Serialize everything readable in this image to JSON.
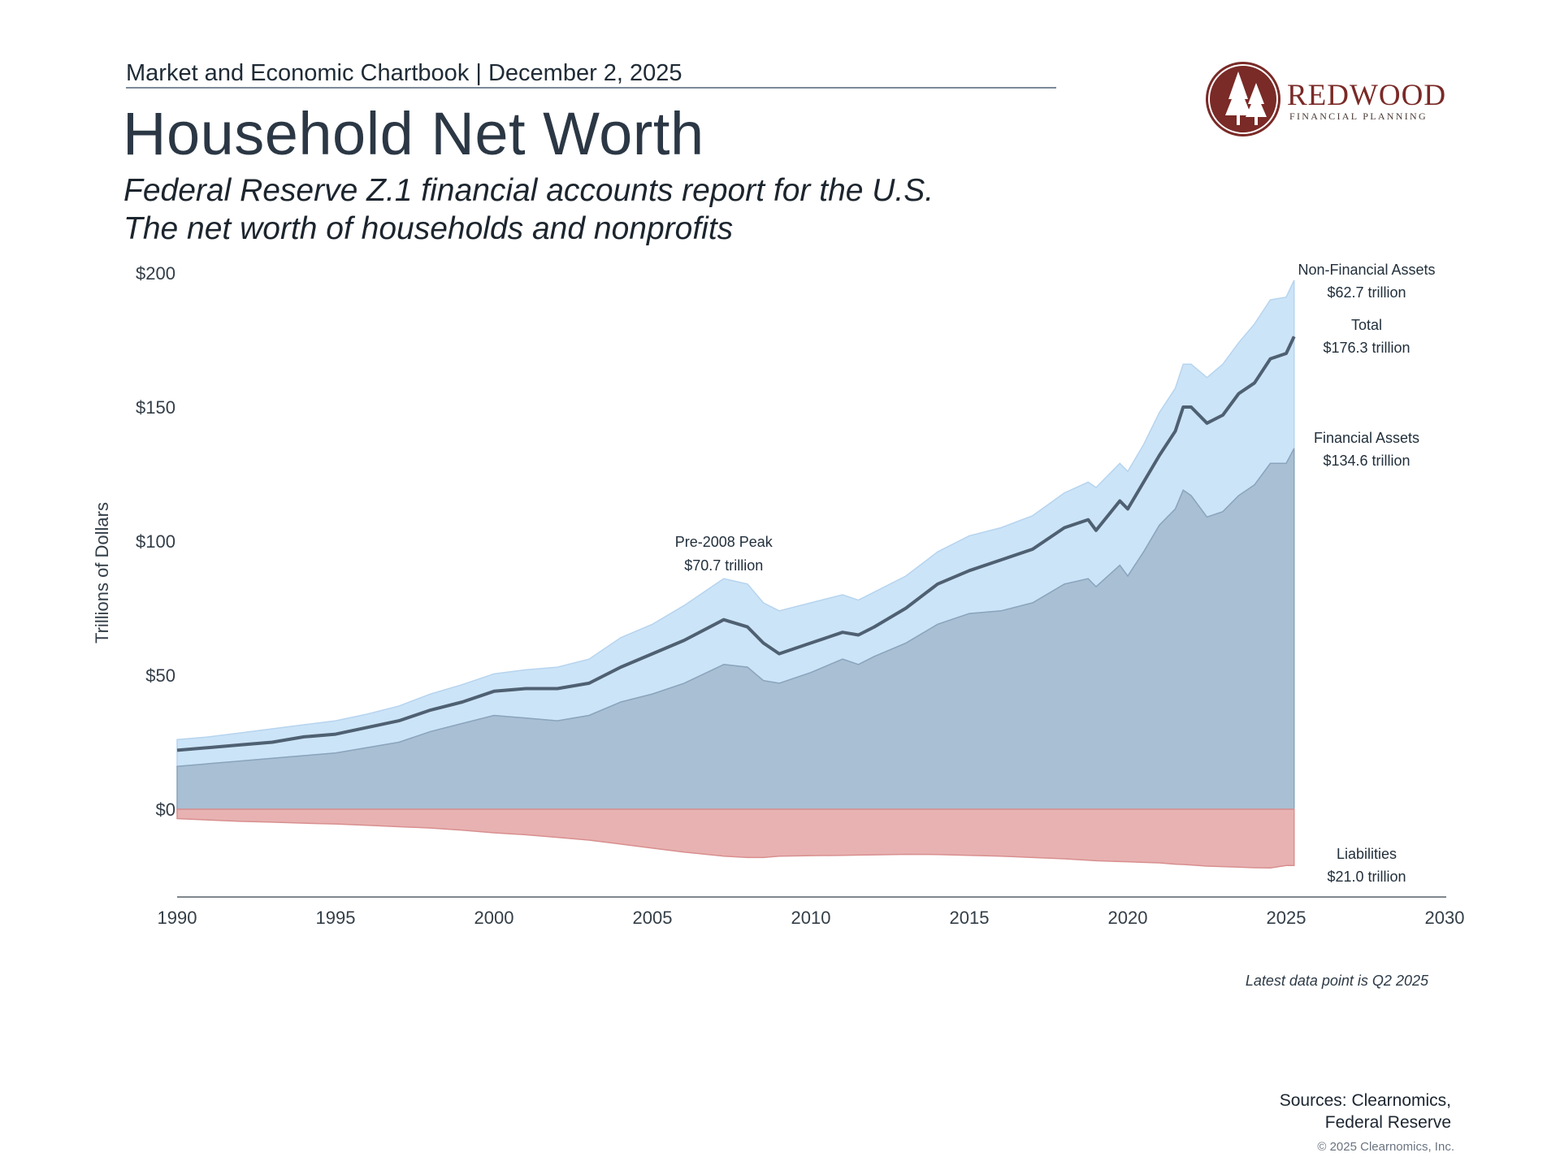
{
  "header": {
    "chartbook_line": "Market and Economic Chartbook | December 2, 2025",
    "title": "Household Net Worth",
    "subtitle_line1": "Federal Reserve Z.1 financial accounts report for the U.S.",
    "subtitle_line2": "The net worth of households and nonprofits"
  },
  "logo": {
    "name": "REDWOOD",
    "tagline": "FINANCIAL PLANNING",
    "icon": "redwood-trees-icon",
    "color": "#7a2a27"
  },
  "chart_data": {
    "type": "area",
    "ylabel": "Trillions of Dollars",
    "ylim": [
      -30,
      200
    ],
    "xlim": [
      1990,
      2030
    ],
    "y_ticks": [
      {
        "value": 0,
        "label": "$0"
      },
      {
        "value": 50,
        "label": "$50"
      },
      {
        "value": 100,
        "label": "$100"
      },
      {
        "value": 150,
        "label": "$150"
      },
      {
        "value": 200,
        "label": "$200"
      }
    ],
    "x_ticks": [
      {
        "value": 1990,
        "label": "1990"
      },
      {
        "value": 1995,
        "label": "1995"
      },
      {
        "value": 2000,
        "label": "2000"
      },
      {
        "value": 2005,
        "label": "2005"
      },
      {
        "value": 2010,
        "label": "2010"
      },
      {
        "value": 2015,
        "label": "2015"
      },
      {
        "value": 2020,
        "label": "2020"
      },
      {
        "value": 2025,
        "label": "2025"
      },
      {
        "value": 2030,
        "label": "2030"
      }
    ],
    "x": [
      1990.0,
      1991.0,
      1992.0,
      1993.0,
      1994.0,
      1995.0,
      1996.0,
      1997.0,
      1998.0,
      1999.0,
      2000.0,
      2001.0,
      2002.0,
      2003.0,
      2004.0,
      2005.0,
      2006.0,
      2007.25,
      2008.0,
      2008.5,
      2009.0,
      2010.0,
      2011.0,
      2011.5,
      2012.0,
      2013.0,
      2014.0,
      2015.0,
      2016.0,
      2017.0,
      2018.0,
      2018.75,
      2019.0,
      2019.75,
      2020.0,
      2020.5,
      2021.0,
      2021.5,
      2021.75,
      2022.0,
      2022.5,
      2023.0,
      2023.5,
      2024.0,
      2024.5,
      2025.0,
      2025.25
    ],
    "series": [
      {
        "name": "Financial Assets",
        "color": "#a9bfd3",
        "values": [
          16,
          17,
          18,
          19,
          20,
          21,
          23,
          25,
          29,
          32,
          35,
          34,
          33,
          35,
          40,
          43,
          47,
          54,
          53,
          48,
          47,
          51,
          56,
          54,
          57,
          62,
          69,
          73,
          74,
          77,
          84,
          86,
          83,
          91,
          87,
          96,
          106,
          112,
          119,
          117,
          109,
          111,
          117,
          121,
          129,
          129,
          134.6
        ]
      },
      {
        "name": "Non-Financial Assets",
        "color": "#cce4f7",
        "values": [
          10,
          10,
          10.5,
          11,
          11.5,
          12,
          12.5,
          13.5,
          14,
          14.5,
          15.5,
          18,
          20,
          21,
          24,
          26,
          29,
          32,
          31,
          29,
          27,
          26,
          24,
          24,
          24,
          25,
          27,
          29,
          31,
          32.5,
          34,
          36,
          37,
          38,
          39,
          40,
          42,
          45,
          47,
          49,
          52,
          55,
          57,
          60,
          61,
          62,
          62.7
        ]
      },
      {
        "name": "Total",
        "color": "#4e6072",
        "values": [
          22,
          23,
          24,
          25,
          27,
          28,
          30.5,
          33,
          37,
          40,
          44,
          45,
          45,
          47,
          53,
          58,
          63,
          70.7,
          68,
          62,
          58,
          62,
          66,
          65,
          68,
          75,
          84,
          89,
          93,
          97,
          105,
          108,
          104,
          115,
          112,
          122,
          132,
          141,
          150,
          150,
          144,
          147,
          155,
          159,
          168,
          170,
          176.3
        ]
      },
      {
        "name": "Liabilities",
        "color": "#e8b2b2",
        "values": [
          -3.5,
          -4,
          -4.5,
          -4.8,
          -5.2,
          -5.5,
          -6,
          -6.5,
          -7,
          -7.8,
          -8.8,
          -9.5,
          -10.5,
          -11.5,
          -13,
          -14.5,
          -16,
          -17.5,
          -18,
          -18,
          -17.5,
          -17.3,
          -17.2,
          -17.1,
          -17,
          -16.8,
          -16.9,
          -17.2,
          -17.5,
          -18,
          -18.5,
          -19,
          -19.2,
          -19.5,
          -19.6,
          -19.8,
          -20,
          -20.5,
          -20.6,
          -20.8,
          -21.2,
          -21.4,
          -21.6,
          -21.8,
          -21.9,
          -21.0,
          -21.0
        ]
      }
    ],
    "annotations": {
      "peak": {
        "line1": "Pre-2008 Peak",
        "line2": "$70.7 trillion",
        "x": 2007.25,
        "y": 70.7
      },
      "non_financial": {
        "line1": "Non-Financial Assets",
        "line2": "$62.7 trillion"
      },
      "total": {
        "line1": "Total",
        "line2": "$176.3 trillion"
      },
      "financial": {
        "line1": "Financial Assets",
        "line2": "$134.6 trillion"
      },
      "liabilities": {
        "line1": "Liabilities",
        "line2": "$21.0 trillion"
      }
    }
  },
  "footnote": "Latest data point is Q2 2025",
  "sources_line1": "Sources: Clearnomics,",
  "sources_line2": "Federal Reserve",
  "copyright": "© 2025 Clearnomics, Inc."
}
